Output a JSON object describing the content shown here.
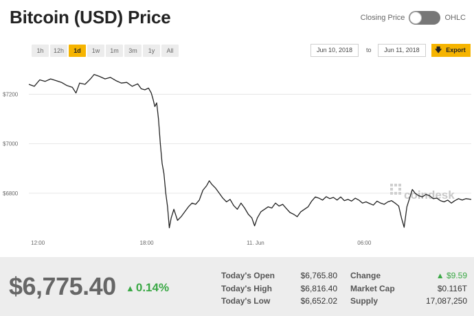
{
  "title": "Bitcoin (USD) Price",
  "toggle": {
    "left_label": "Closing Price",
    "right_label": "OHLC"
  },
  "ranges": [
    "1h",
    "12h",
    "1d",
    "1w",
    "1m",
    "3m",
    "1y",
    "All"
  ],
  "active_range": "1d",
  "date_from": "Jun 10, 2018",
  "date_to_label": "to",
  "date_to": "Jun 11, 2018",
  "export_label": "Export",
  "watermark": "coindesk",
  "colors": {
    "accent": "#f6b400",
    "line": "#222222",
    "positive": "#3aa845"
  },
  "chart_data": {
    "type": "line",
    "y_ticks": [
      "$7200",
      "$7000",
      "$6800"
    ],
    "y_tick_values": [
      7200,
      7000,
      6800
    ],
    "x_ticks": [
      "12:00",
      "18:00",
      "11. Jun",
      "06:00"
    ],
    "x_tick_hours": [
      12,
      18,
      24,
      30
    ],
    "x_range_hours": [
      11.5,
      35.9
    ],
    "ylim": [
      6625,
      7290
    ],
    "grid": true,
    "series": [
      {
        "values": [
          [
            11.5,
            7240
          ],
          [
            11.8,
            7232
          ],
          [
            12.1,
            7258
          ],
          [
            12.4,
            7252
          ],
          [
            12.7,
            7262
          ],
          [
            13.0,
            7255
          ],
          [
            13.3,
            7248
          ],
          [
            13.6,
            7235
          ],
          [
            13.9,
            7228
          ],
          [
            14.1,
            7205
          ],
          [
            14.3,
            7245
          ],
          [
            14.6,
            7240
          ],
          [
            14.9,
            7262
          ],
          [
            15.1,
            7280
          ],
          [
            15.4,
            7272
          ],
          [
            15.7,
            7262
          ],
          [
            16.0,
            7268
          ],
          [
            16.3,
            7255
          ],
          [
            16.6,
            7245
          ],
          [
            16.9,
            7248
          ],
          [
            17.2,
            7232
          ],
          [
            17.5,
            7242
          ],
          [
            17.7,
            7222
          ],
          [
            17.9,
            7218
          ],
          [
            18.1,
            7225
          ],
          [
            18.25,
            7205
          ],
          [
            18.35,
            7180
          ],
          [
            18.45,
            7150
          ],
          [
            18.55,
            7165
          ],
          [
            18.65,
            7100
          ],
          [
            18.75,
            7000
          ],
          [
            18.85,
            6920
          ],
          [
            18.95,
            6880
          ],
          [
            19.05,
            6800
          ],
          [
            19.15,
            6745
          ],
          [
            19.25,
            6660
          ],
          [
            19.35,
            6700
          ],
          [
            19.5,
            6735
          ],
          [
            19.7,
            6690
          ],
          [
            19.9,
            6705
          ],
          [
            20.1,
            6725
          ],
          [
            20.3,
            6745
          ],
          [
            20.5,
            6760
          ],
          [
            20.7,
            6755
          ],
          [
            20.9,
            6772
          ],
          [
            21.1,
            6812
          ],
          [
            21.3,
            6830
          ],
          [
            21.45,
            6850
          ],
          [
            21.6,
            6835
          ],
          [
            21.8,
            6820
          ],
          [
            22.0,
            6800
          ],
          [
            22.2,
            6780
          ],
          [
            22.4,
            6765
          ],
          [
            22.6,
            6775
          ],
          [
            22.8,
            6750
          ],
          [
            23.0,
            6735
          ],
          [
            23.2,
            6760
          ],
          [
            23.4,
            6740
          ],
          [
            23.6,
            6715
          ],
          [
            23.8,
            6700
          ],
          [
            23.95,
            6668
          ],
          [
            24.1,
            6700
          ],
          [
            24.3,
            6725
          ],
          [
            24.5,
            6735
          ],
          [
            24.7,
            6745
          ],
          [
            24.9,
            6740
          ],
          [
            25.1,
            6760
          ],
          [
            25.3,
            6748
          ],
          [
            25.5,
            6755
          ],
          [
            25.7,
            6738
          ],
          [
            25.9,
            6722
          ],
          [
            26.1,
            6715
          ],
          [
            26.3,
            6705
          ],
          [
            26.5,
            6725
          ],
          [
            26.7,
            6735
          ],
          [
            26.9,
            6745
          ],
          [
            27.1,
            6768
          ],
          [
            27.3,
            6785
          ],
          [
            27.5,
            6780
          ],
          [
            27.7,
            6772
          ],
          [
            27.9,
            6786
          ],
          [
            28.1,
            6778
          ],
          [
            28.3,
            6783
          ],
          [
            28.5,
            6772
          ],
          [
            28.7,
            6785
          ],
          [
            28.9,
            6770
          ],
          [
            29.1,
            6775
          ],
          [
            29.3,
            6768
          ],
          [
            29.5,
            6780
          ],
          [
            29.7,
            6772
          ],
          [
            29.9,
            6760
          ],
          [
            30.1,
            6765
          ],
          [
            30.3,
            6758
          ],
          [
            30.5,
            6752
          ],
          [
            30.7,
            6768
          ],
          [
            30.9,
            6760
          ],
          [
            31.1,
            6755
          ],
          [
            31.3,
            6765
          ],
          [
            31.5,
            6770
          ],
          [
            31.7,
            6760
          ],
          [
            31.9,
            6748
          ],
          [
            32.05,
            6700
          ],
          [
            32.2,
            6662
          ],
          [
            32.35,
            6745
          ],
          [
            32.5,
            6780
          ],
          [
            32.65,
            6815
          ],
          [
            32.8,
            6800
          ],
          [
            33.0,
            6790
          ],
          [
            33.2,
            6785
          ],
          [
            33.4,
            6795
          ],
          [
            33.6,
            6790
          ],
          [
            33.8,
            6778
          ],
          [
            34.0,
            6780
          ],
          [
            34.2,
            6770
          ],
          [
            34.4,
            6765
          ],
          [
            34.6,
            6772
          ],
          [
            34.8,
            6760
          ],
          [
            35.0,
            6770
          ],
          [
            35.2,
            6778
          ],
          [
            35.4,
            6772
          ],
          [
            35.6,
            6778
          ],
          [
            35.9,
            6775
          ]
        ]
      }
    ]
  },
  "footer": {
    "price": "$6,775.40",
    "change_pct": "0.14%",
    "change_symbol": "▲",
    "stats": [
      {
        "label": "Today's Open",
        "value": "$6,765.80"
      },
      {
        "label": "Today's High",
        "value": "$6,816.40"
      },
      {
        "label": "Today's Low",
        "value": "$6,652.02"
      },
      {
        "label": "Change",
        "value": "▲ $9.59"
      },
      {
        "label": "Market Cap",
        "value": "$0.116T"
      },
      {
        "label": "Supply",
        "value": "17,087,250"
      }
    ]
  }
}
